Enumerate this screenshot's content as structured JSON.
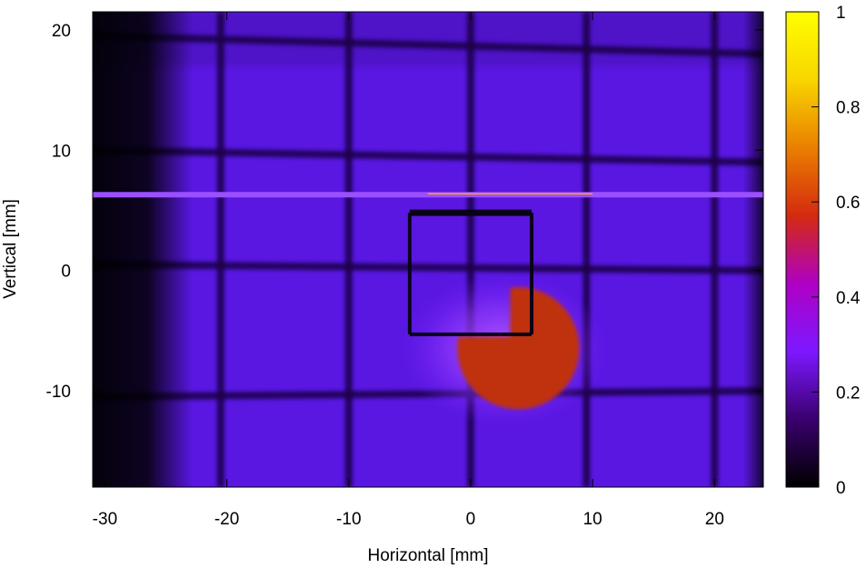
{
  "chart_data": {
    "type": "heatmap",
    "title": "",
    "xlabel": "Horizontal [mm]",
    "ylabel": "Vertical [mm]",
    "xlim": [
      -31,
      24
    ],
    "ylim": [
      -18,
      21.5
    ],
    "x_ticks": [
      -30,
      -20,
      -10,
      0,
      10,
      20
    ],
    "x_tick_labels": [
      "-30",
      "-20",
      "-10",
      "0",
      "10",
      "20"
    ],
    "y_ticks": [
      -10,
      0,
      10,
      20
    ],
    "y_tick_labels": [
      "-10",
      "0",
      "10",
      "20"
    ],
    "colorbar": {
      "range": [
        0,
        1
      ],
      "ticks": [
        0,
        0.2,
        0.4,
        0.6,
        0.8,
        1
      ],
      "tick_labels": [
        "0",
        "0.2",
        "0.4",
        "0.6",
        "0.8",
        "1"
      ],
      "colormap": [
        "#000000",
        "#3a006e",
        "#7d18ff",
        "#b000c4",
        "#d42a10",
        "#ea7f00",
        "#f8d500",
        "#ffff00"
      ]
    },
    "features": {
      "background_intensity": 0.15,
      "dark_band_x_range": [
        -31,
        -24
      ],
      "grid_vertical_lines_x": [
        -20.5,
        -10,
        0,
        9.5,
        20
      ],
      "grid_horizontal_lines": [
        {
          "y_left": 19.5,
          "y_right": 18
        },
        {
          "y_left": 10,
          "y_right": 9
        },
        {
          "y_left": 0.5,
          "y_right": 0
        },
        {
          "y_left": -10.5,
          "y_right": -10
        }
      ],
      "bright_line_y": 6.3,
      "square_frame": {
        "x": [
          -5,
          5
        ],
        "y": [
          -5.3,
          4.8
        ]
      },
      "beam_spot": {
        "center": [
          4,
          -6.5
        ],
        "radius_mm": 5,
        "peak_intensity": 0.55,
        "notch_quadrant": "top-left"
      }
    },
    "grid": false,
    "legend": "none"
  }
}
